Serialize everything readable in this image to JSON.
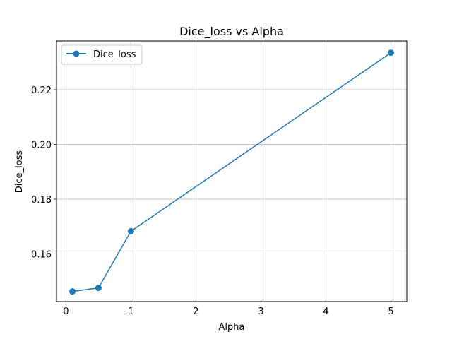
{
  "chart_data": {
    "type": "line",
    "title": "Dice_loss vs Alpha",
    "xlabel": "Alpha",
    "ylabel": "Dice_loss",
    "xlim": [
      -0.145,
      5.245
    ],
    "ylim": [
      0.1426,
      0.2378
    ],
    "xticks": [
      0,
      1,
      2,
      3,
      4,
      5
    ],
    "yticks": [
      0.16,
      0.18,
      0.2,
      0.22
    ],
    "ytick_labels": [
      "0.16",
      "0.18",
      "0.20",
      "0.22"
    ],
    "grid": true,
    "legend_position": "top-left",
    "series": [
      {
        "name": "Dice_loss",
        "color": "#1f77b4",
        "marker": "circle",
        "x": [
          0.1,
          0.5,
          1,
          5
        ],
        "y": [
          0.1463,
          0.1476,
          0.1683,
          0.2335
        ]
      }
    ]
  }
}
